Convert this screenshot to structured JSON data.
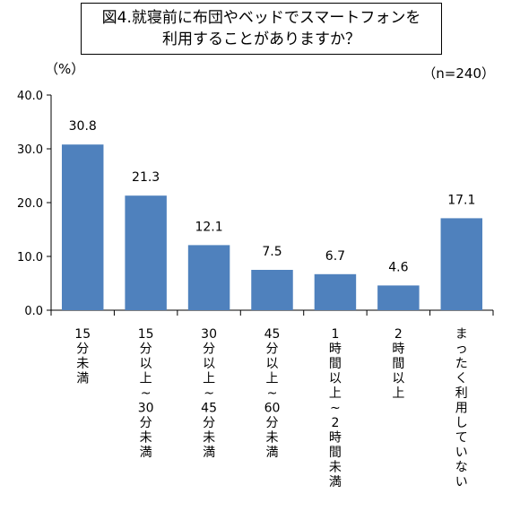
{
  "chart_data": {
    "type": "bar",
    "title_line1": "図4.就寝前に布団やベッドでスマートフォンを",
    "title_line2": "利用することがありますか？",
    "unit": "（%）",
    "sample": "（n=240）",
    "ylim": [
      0,
      40
    ],
    "yticks": [
      "0.0",
      "10.0",
      "20.0",
      "30.0",
      "40.0"
    ],
    "grid": false,
    "bar_color": "#4f81bd",
    "categories": [
      "15分未満",
      "15分以上～30分未満",
      "30分以上～45分未満",
      "45分以上～60分未満",
      "1時間以上～2時間未満",
      "2時間以上",
      "まったく利用していない"
    ],
    "values": [
      30.8,
      21.3,
      12.1,
      7.5,
      6.7,
      4.6,
      17.1
    ],
    "value_labels": [
      "30.8",
      "21.3",
      "12.1",
      "7.5",
      "6.7",
      "4.6",
      "17.1"
    ]
  }
}
